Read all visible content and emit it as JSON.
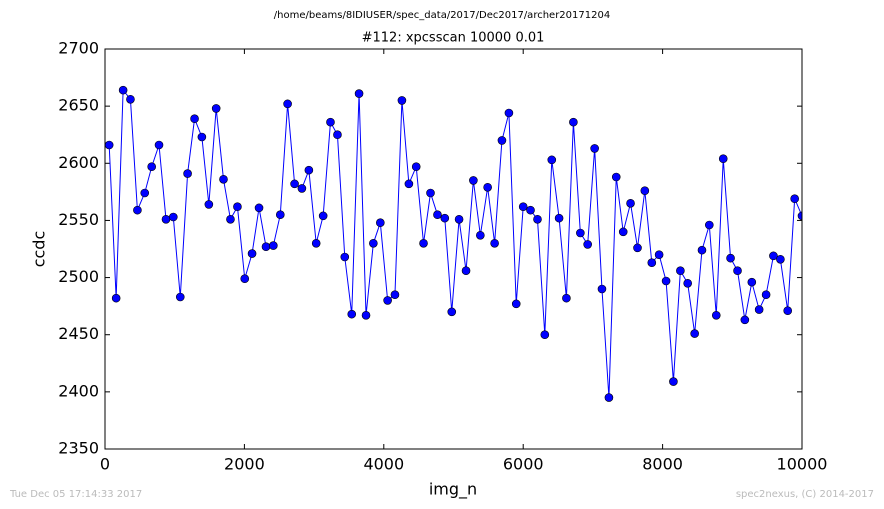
{
  "chart_data": {
    "type": "line",
    "suptitle": "/home/beams/8IDIUSER/spec_data/2017/Dec2017/archer20171204",
    "title": "#112: xpcsscan 10000 0.01",
    "x_label": "img_n",
    "y_label": "ccdc",
    "footer_left": "Tue Dec 05 17:14:33 2017",
    "footer_right": "spec2nexus, (C) 2014-2017",
    "xlim": [
      0,
      10000
    ],
    "ylim": [
      2350,
      2700
    ],
    "xticks": [
      0,
      2000,
      4000,
      6000,
      8000,
      10000
    ],
    "yticks": [
      2350,
      2400,
      2450,
      2500,
      2550,
      2600,
      2650,
      2700
    ],
    "series": [
      {
        "color": "#0000ff",
        "x": [
          60,
          160,
          260,
          365,
          465,
          570,
          670,
          775,
          875,
          980,
          1080,
          1185,
          1285,
          1390,
          1490,
          1595,
          1700,
          1800,
          1900,
          2005,
          2110,
          2210,
          2310,
          2415,
          2515,
          2620,
          2720,
          2825,
          2925,
          3030,
          3130,
          3235,
          3335,
          3440,
          3540,
          3645,
          3745,
          3850,
          3950,
          4055,
          4160,
          4260,
          4360,
          4465,
          4570,
          4670,
          4770,
          4875,
          4975,
          5080,
          5180,
          5285,
          5385,
          5490,
          5590,
          5695,
          5795,
          5900,
          6000,
          6105,
          6205,
          6310,
          6410,
          6515,
          6620,
          6720,
          6820,
          6925,
          7025,
          7130,
          7230,
          7335,
          7435,
          7540,
          7640,
          7745,
          7845,
          7950,
          8050,
          8155,
          8255,
          8360,
          8460,
          8565,
          8670,
          8770,
          8870,
          8975,
          9075,
          9180,
          9280,
          9385,
          9485,
          9590,
          9690,
          9795,
          9895,
          10000
        ],
        "values": [
          2616,
          2482,
          2664,
          2656,
          2559,
          2574,
          2597,
          2616,
          2551,
          2553,
          2483,
          2591,
          2639,
          2623,
          2564,
          2648,
          2586,
          2551,
          2562,
          2499,
          2521,
          2561,
          2527,
          2528,
          2555,
          2652,
          2582,
          2578,
          2594,
          2530,
          2554,
          2636,
          2625,
          2518,
          2468,
          2661,
          2467,
          2530,
          2548,
          2480,
          2485,
          2655,
          2582,
          2597,
          2530,
          2574,
          2555,
          2552,
          2470,
          2551,
          2506,
          2585,
          2537,
          2579,
          2530,
          2620,
          2644,
          2477,
          2562,
          2559,
          2551,
          2450,
          2603,
          2552,
          2482,
          2636,
          2539,
          2529,
          2613,
          2490,
          2395,
          2588,
          2540,
          2565,
          2526,
          2576,
          2513,
          2520,
          2497,
          2409,
          2506,
          2495,
          2451,
          2524,
          2546,
          2467,
          2604,
          2517,
          2506,
          2463,
          2496,
          2472,
          2485,
          2519,
          2516,
          2471,
          2569,
          2554
        ]
      }
    ]
  }
}
